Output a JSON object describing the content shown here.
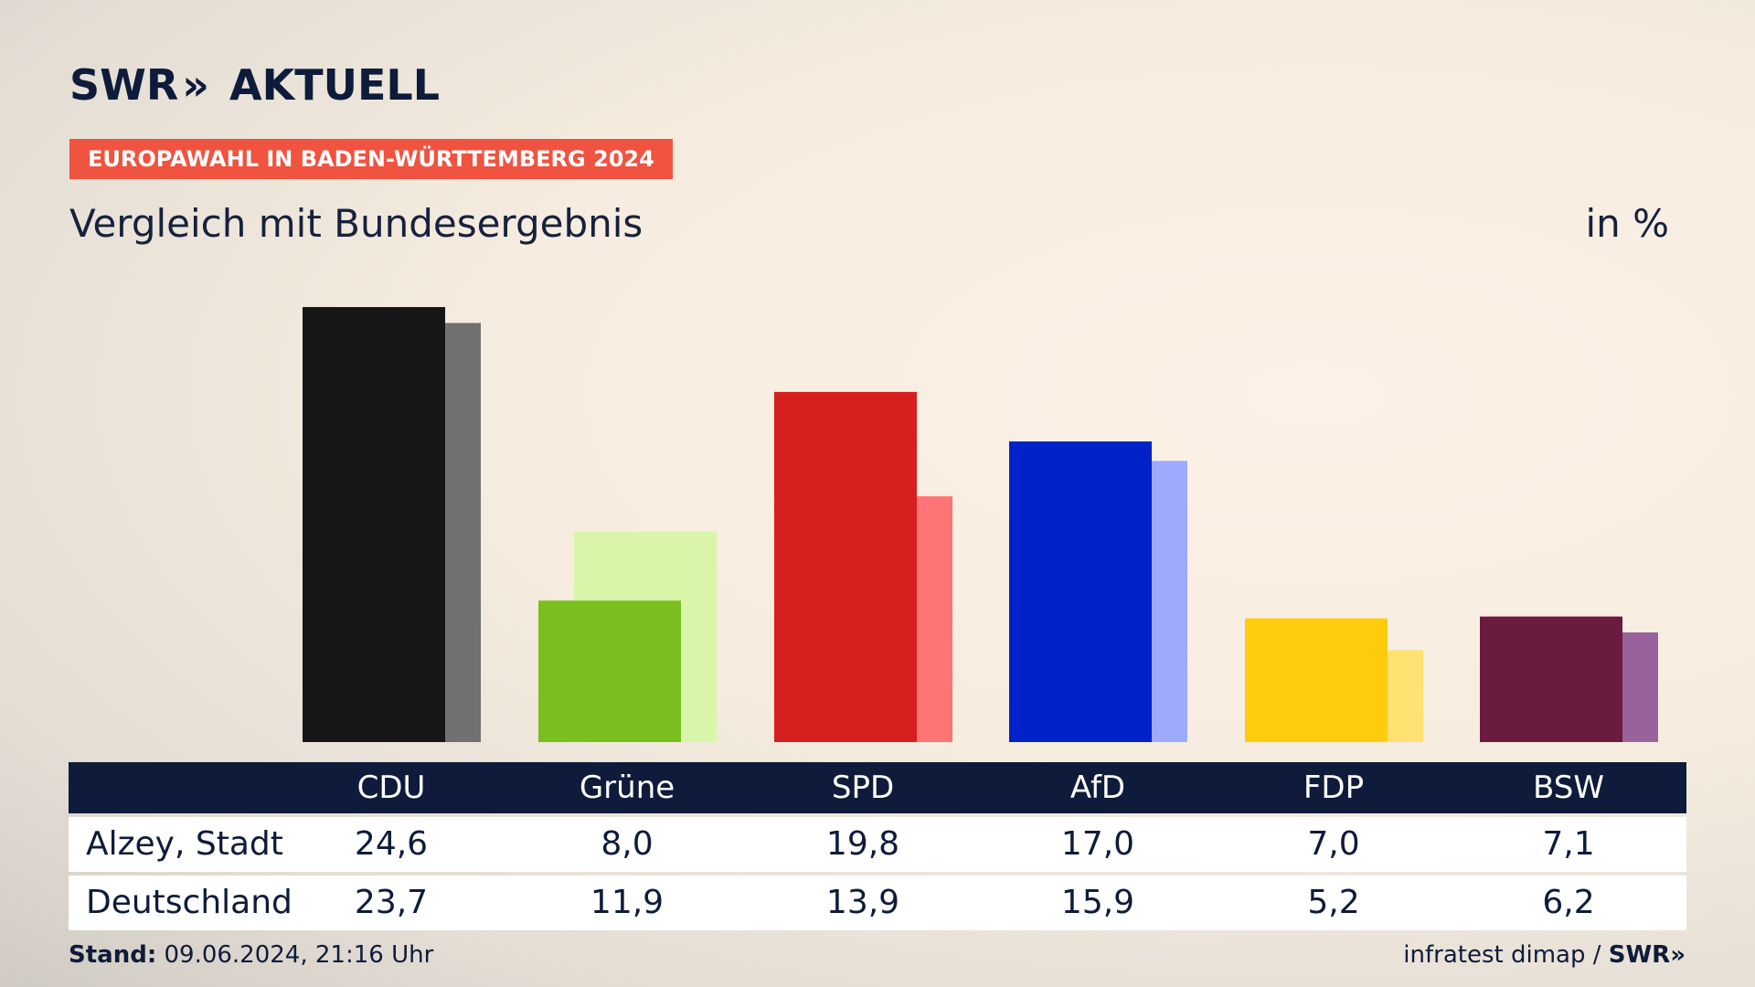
{
  "brand": {
    "name": "SWR",
    "chevrons": "»",
    "section": "AKTUELL"
  },
  "badge": "EUROPAWAHL IN BADEN-WÜRTTEMBERG 2024",
  "subtitle": "Vergleich mit Bundesergebnis",
  "unit": "in %",
  "chart_data": {
    "type": "bar",
    "categories": [
      "CDU",
      "Grüne",
      "SPD",
      "AfD",
      "FDP",
      "BSW"
    ],
    "series": [
      {
        "name": "Alzey, Stadt",
        "values": [
          24.6,
          8.0,
          19.8,
          17.0,
          7.0,
          7.1
        ]
      },
      {
        "name": "Deutschland",
        "values": [
          23.7,
          11.9,
          13.9,
          15.9,
          5.2,
          6.2
        ]
      }
    ],
    "colors_primary": [
      "#161616",
      "#7bbf1f",
      "#d71f1f",
      "#0022c8",
      "#ffcc0d",
      "#6b1a40"
    ],
    "colors_secondary": [
      "#717171",
      "#d8f5aa",
      "#ff7474",
      "#9eaafc",
      "#ffe272",
      "#9a629a"
    ],
    "ylim": [
      0,
      24.6
    ],
    "grid": false,
    "legend": "table-below"
  },
  "table": {
    "columns": [
      "CDU",
      "Grüne",
      "SPD",
      "AfD",
      "FDP",
      "BSW"
    ],
    "rows": [
      {
        "label": "Alzey, Stadt",
        "values": [
          "24,6",
          "8,0",
          "19,8",
          "17,0",
          "7,0",
          "7,1"
        ]
      },
      {
        "label": "Deutschland",
        "values": [
          "23,7",
          "11,9",
          "13,9",
          "15,9",
          "5,2",
          "6,2"
        ]
      }
    ]
  },
  "footer": {
    "stand_label": "Stand:",
    "stand_value": "09.06.2024, 21:16 Uhr",
    "source": "infratest dimap /",
    "source_brand": "SWR»"
  }
}
